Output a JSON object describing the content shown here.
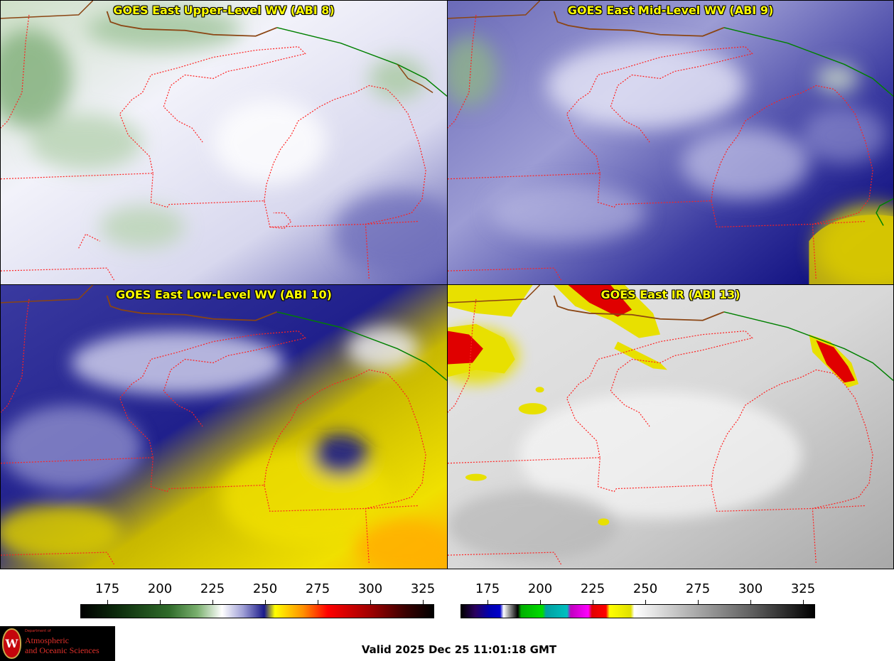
{
  "panels": [
    {
      "title": "GOES East Upper-Level WV (ABI 8)",
      "palette": "wv-upper"
    },
    {
      "title": "GOES East Mid-Level WV (ABI 9)",
      "palette": "wv-mid"
    },
    {
      "title": "GOES East Low-Level WV (ABI 10)",
      "palette": "wv-low"
    },
    {
      "title": "GOES East IR (ABI 13)",
      "palette": "ir"
    }
  ],
  "colorbars": [
    {
      "ticks": [
        "175",
        "200",
        "225",
        "250",
        "275",
        "300",
        "325"
      ],
      "colors": [
        "#000000",
        "#2f6b2a",
        "#ffffff",
        "#1a1a8a",
        "#ffff00",
        "#ff0000",
        "#000000"
      ]
    },
    {
      "ticks": [
        "175",
        "200",
        "225",
        "250",
        "275",
        "300",
        "325"
      ],
      "colors": [
        "#2a0060",
        "#0000b0",
        "#00b000",
        "#00a0a0",
        "#ff00ff",
        "#ff0000",
        "#ffff00",
        "#ffffff",
        "#000000"
      ]
    }
  ],
  "logo": {
    "department": "Department of",
    "line1": "Atmospheric",
    "line2": "and Oceanic Sciences",
    "seal": "W"
  },
  "footer": {
    "valid": "Valid 2025 Dec 25 11:01:18 GMT"
  },
  "colors": {
    "title_text": "#ffff00",
    "state_borders": "#ff2020",
    "intl_border_green": "#008000",
    "intl_border_brown": "#8b4513"
  }
}
